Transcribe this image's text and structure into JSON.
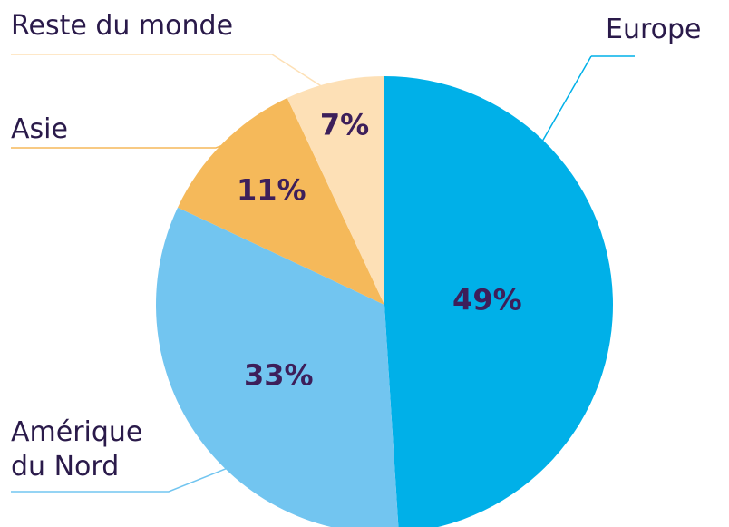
{
  "chart_data": {
    "type": "pie",
    "categories": [
      "Europe",
      "Amérique du Nord",
      "Asie",
      "Reste du monde"
    ],
    "values": [
      49,
      33,
      11,
      7
    ],
    "value_labels": [
      "49%",
      "33%",
      "11%",
      "7%"
    ],
    "colors": [
      "#00b0e8",
      "#72c5f0",
      "#f5b95a",
      "#fde0b6"
    ]
  }
}
